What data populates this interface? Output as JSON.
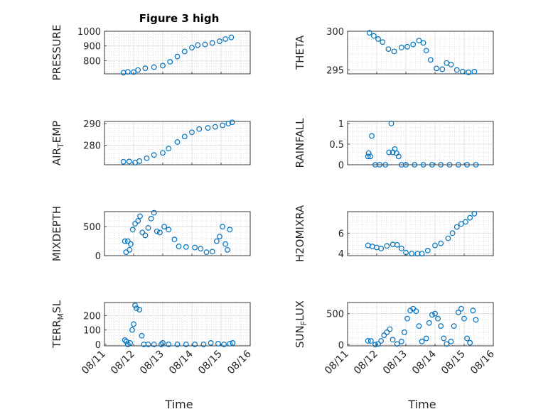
{
  "chart_data": {
    "title": "Figure 3 high",
    "xlabel": "Time",
    "x_ticks": [
      "08/11",
      "08/12",
      "08/13",
      "08/14",
      "08/15",
      "08/16"
    ],
    "xlim": [
      "08/11",
      "08/16"
    ],
    "grid": true,
    "marker": "circle",
    "color": "#0072BD",
    "panels": [
      {
        "ylabel": "PRESSURE",
        "ylabel_parts": [
          {
            "t": "PRESSURE",
            "sub": false
          }
        ],
        "ylim": [
          710,
          1000
        ],
        "yticks": [
          800,
          900,
          1000
        ],
        "series": [
          [
            11.65,
            718
          ],
          [
            11.8,
            724
          ],
          [
            12.0,
            722
          ],
          [
            12.15,
            736
          ],
          [
            12.4,
            748
          ],
          [
            12.7,
            756
          ],
          [
            13.0,
            766
          ],
          [
            13.25,
            792
          ],
          [
            13.5,
            828
          ],
          [
            13.75,
            862
          ],
          [
            14.0,
            888
          ],
          [
            14.2,
            906
          ],
          [
            14.45,
            910
          ],
          [
            14.7,
            920
          ],
          [
            14.95,
            932
          ],
          [
            15.15,
            947
          ],
          [
            15.35,
            958
          ]
        ]
      },
      {
        "ylabel": "THETA",
        "ylabel_parts": [
          {
            "t": "THETA",
            "sub": false
          }
        ],
        "ylim": [
          294.5,
          300
        ],
        "yticks": [
          295,
          300
        ],
        "series": [
          [
            11.75,
            299.8
          ],
          [
            11.9,
            299.4
          ],
          [
            12.05,
            299.0
          ],
          [
            12.2,
            298.6
          ],
          [
            12.4,
            297.7
          ],
          [
            12.6,
            297.4
          ],
          [
            12.85,
            297.9
          ],
          [
            13.05,
            298.0
          ],
          [
            13.25,
            298.3
          ],
          [
            13.45,
            298.8
          ],
          [
            13.6,
            298.5
          ],
          [
            13.7,
            297.5
          ],
          [
            13.85,
            296.3
          ],
          [
            14.05,
            295.2
          ],
          [
            14.25,
            295.1
          ],
          [
            14.4,
            295.9
          ],
          [
            14.55,
            295.7
          ],
          [
            14.75,
            295.0
          ],
          [
            14.95,
            294.8
          ],
          [
            15.15,
            294.7
          ],
          [
            15.35,
            294.8
          ]
        ]
      },
      {
        "ylabel": "AIR_TEMP",
        "ylabel_parts": [
          {
            "t": "AIR",
            "sub": false
          },
          {
            "t": "T",
            "sub": true
          },
          {
            "t": "EMP",
            "sub": false
          }
        ],
        "ylim": [
          271,
          291
        ],
        "yticks": [
          280,
          290
        ],
        "series": [
          [
            11.65,
            272.4
          ],
          [
            11.85,
            272.5
          ],
          [
            12.05,
            272.0
          ],
          [
            12.2,
            272.7
          ],
          [
            12.45,
            274.0
          ],
          [
            12.7,
            275.5
          ],
          [
            13.0,
            276.5
          ],
          [
            13.2,
            278.5
          ],
          [
            13.5,
            281.5
          ],
          [
            13.75,
            284.0
          ],
          [
            14.0,
            286.0
          ],
          [
            14.25,
            287.5
          ],
          [
            14.55,
            288.0
          ],
          [
            14.8,
            288.5
          ],
          [
            15.05,
            289.2
          ],
          [
            15.25,
            290.0
          ],
          [
            15.38,
            290.6
          ]
        ]
      },
      {
        "ylabel": "RAINFALL",
        "ylabel_parts": [
          {
            "t": "RAINFALL",
            "sub": false
          }
        ],
        "ylim": [
          0,
          1.05
        ],
        "yticks": [
          0,
          0.5,
          1
        ],
        "series": [
          [
            11.7,
            0.2
          ],
          [
            11.72,
            0.28
          ],
          [
            11.78,
            0.2
          ],
          [
            11.83,
            0.7
          ],
          [
            11.95,
            0.0
          ],
          [
            12.1,
            0.0
          ],
          [
            12.3,
            0.0
          ],
          [
            12.42,
            0.3
          ],
          [
            12.5,
            1.0
          ],
          [
            12.55,
            0.3
          ],
          [
            12.62,
            0.38
          ],
          [
            12.68,
            0.28
          ],
          [
            12.75,
            0.2
          ],
          [
            12.85,
            0.0
          ],
          [
            13.0,
            0.0
          ],
          [
            13.3,
            0.0
          ],
          [
            13.6,
            0.0
          ],
          [
            13.9,
            0.0
          ],
          [
            14.2,
            0.0
          ],
          [
            14.5,
            0.0
          ],
          [
            14.8,
            0.0
          ],
          [
            15.1,
            0.0
          ],
          [
            15.4,
            0.0
          ]
        ]
      },
      {
        "ylabel": "MIXDEPTH",
        "ylabel_parts": [
          {
            "t": "MIXDEPTH",
            "sub": false
          }
        ],
        "ylim": [
          0,
          760
        ],
        "yticks": [
          0,
          500
        ],
        "series": [
          [
            11.7,
            250
          ],
          [
            11.74,
            60
          ],
          [
            11.8,
            250
          ],
          [
            11.86,
            100
          ],
          [
            11.9,
            200
          ],
          [
            11.97,
            450
          ],
          [
            12.05,
            550
          ],
          [
            12.15,
            600
          ],
          [
            12.22,
            680
          ],
          [
            12.3,
            400
          ],
          [
            12.4,
            350
          ],
          [
            12.5,
            480
          ],
          [
            12.6,
            640
          ],
          [
            12.7,
            740
          ],
          [
            12.8,
            420
          ],
          [
            12.9,
            400
          ],
          [
            13.05,
            500
          ],
          [
            13.2,
            450
          ],
          [
            13.4,
            280
          ],
          [
            13.55,
            160
          ],
          [
            13.8,
            150
          ],
          [
            14.1,
            140
          ],
          [
            14.3,
            120
          ],
          [
            14.5,
            60
          ],
          [
            14.7,
            70
          ],
          [
            14.85,
            250
          ],
          [
            14.95,
            330
          ],
          [
            15.05,
            500
          ],
          [
            15.15,
            200
          ],
          [
            15.22,
            100
          ],
          [
            15.3,
            450
          ]
        ]
      },
      {
        "ylabel": "H2OMIXRA",
        "ylabel_parts": [
          {
            "t": "H2OMIXRA",
            "sub": false
          }
        ],
        "ylim": [
          3.8,
          8.1
        ],
        "yticks": [
          4,
          6
        ],
        "series": [
          [
            11.7,
            4.8
          ],
          [
            11.85,
            4.7
          ],
          [
            12.0,
            4.6
          ],
          [
            12.15,
            4.5
          ],
          [
            12.35,
            4.75
          ],
          [
            12.55,
            4.9
          ],
          [
            12.7,
            4.85
          ],
          [
            12.85,
            4.5
          ],
          [
            13.0,
            4.1
          ],
          [
            13.2,
            4.0
          ],
          [
            13.4,
            4.0
          ],
          [
            13.55,
            4.0
          ],
          [
            13.75,
            4.3
          ],
          [
            14.0,
            4.8
          ],
          [
            14.2,
            5.0
          ],
          [
            14.45,
            5.5
          ],
          [
            14.6,
            6.0
          ],
          [
            14.75,
            6.6
          ],
          [
            14.9,
            6.9
          ],
          [
            15.05,
            7.1
          ],
          [
            15.2,
            7.5
          ],
          [
            15.35,
            7.9
          ]
        ]
      },
      {
        "ylabel": "TERR_MSL",
        "ylabel_parts": [
          {
            "t": "TERR",
            "sub": false
          },
          {
            "t": "M",
            "sub": true
          },
          {
            "t": "SL",
            "sub": false
          }
        ],
        "ylim": [
          -10,
          290
        ],
        "yticks": [
          0,
          100,
          200
        ],
        "series": [
          [
            11.7,
            30
          ],
          [
            11.75,
            20
          ],
          [
            11.8,
            0
          ],
          [
            11.88,
            10
          ],
          [
            11.95,
            100
          ],
          [
            12.0,
            140
          ],
          [
            12.05,
            270
          ],
          [
            12.1,
            250
          ],
          [
            12.2,
            240
          ],
          [
            12.28,
            60
          ],
          [
            12.35,
            0
          ],
          [
            12.5,
            0
          ],
          [
            12.7,
            0
          ],
          [
            12.95,
            0
          ],
          [
            13.0,
            10
          ],
          [
            13.2,
            0
          ],
          [
            13.5,
            0
          ],
          [
            13.8,
            0
          ],
          [
            14.1,
            0
          ],
          [
            14.4,
            0
          ],
          [
            14.65,
            10
          ],
          [
            14.9,
            5
          ],
          [
            15.1,
            0
          ],
          [
            15.3,
            5
          ],
          [
            15.4,
            10
          ]
        ]
      },
      {
        "ylabel": "SUN_FLUX",
        "ylabel_parts": [
          {
            "t": "SUN",
            "sub": false
          },
          {
            "t": "F",
            "sub": true
          },
          {
            "t": "LUX",
            "sub": false
          }
        ],
        "ylim": [
          -20,
          680
        ],
        "yticks": [
          0,
          500
        ],
        "series": [
          [
            11.7,
            60
          ],
          [
            11.8,
            60
          ],
          [
            11.95,
            0
          ],
          [
            12.05,
            10
          ],
          [
            12.15,
            60
          ],
          [
            12.25,
            150
          ],
          [
            12.35,
            200
          ],
          [
            12.45,
            250
          ],
          [
            12.55,
            80
          ],
          [
            12.7,
            10
          ],
          [
            12.85,
            50
          ],
          [
            12.95,
            200
          ],
          [
            13.05,
            420
          ],
          [
            13.15,
            550
          ],
          [
            13.25,
            580
          ],
          [
            13.35,
            540
          ],
          [
            13.45,
            300
          ],
          [
            13.55,
            50
          ],
          [
            13.7,
            100
          ],
          [
            13.8,
            350
          ],
          [
            13.9,
            480
          ],
          [
            14.0,
            500
          ],
          [
            14.1,
            420
          ],
          [
            14.2,
            300
          ],
          [
            14.3,
            100
          ],
          [
            14.4,
            10
          ],
          [
            14.55,
            50
          ],
          [
            14.65,
            300
          ],
          [
            14.8,
            520
          ],
          [
            14.9,
            580
          ],
          [
            15.0,
            420
          ],
          [
            15.1,
            100
          ],
          [
            15.2,
            30
          ],
          [
            15.3,
            550
          ],
          [
            15.4,
            400
          ]
        ]
      }
    ]
  }
}
